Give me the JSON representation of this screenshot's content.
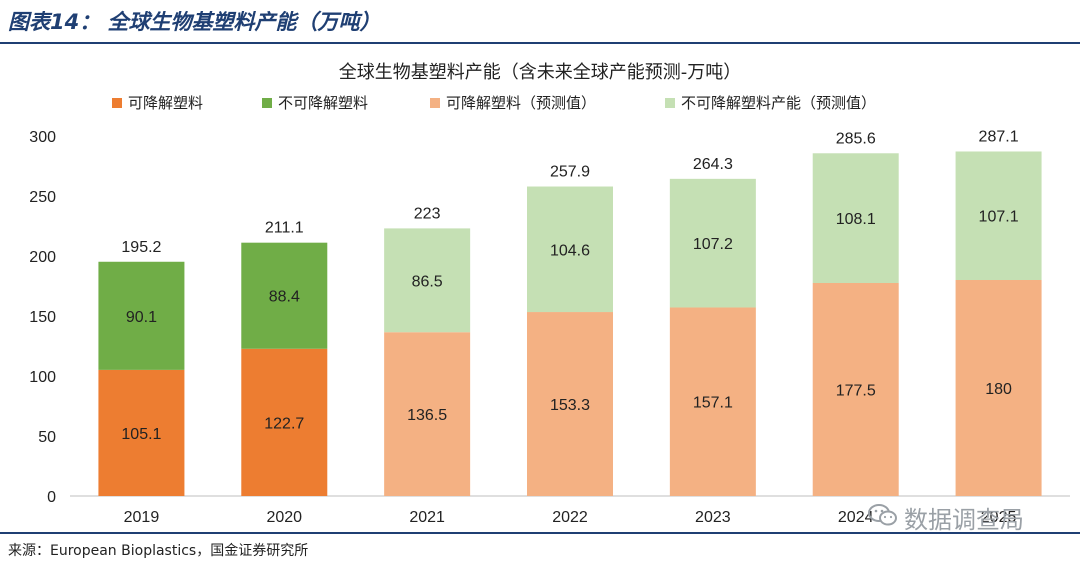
{
  "figure": {
    "title": "图表14： 全球生物基塑料产能（万吨）",
    "source": "来源：European Bioplastics，国金证券研究所"
  },
  "watermark": {
    "text": "数据调查局"
  },
  "colors": {
    "degradable": "#ed7d31",
    "non_degradable": "#70ad47",
    "degradable_forecast": "#f4b183",
    "non_degradable_forecast": "#c5e0b4",
    "rule": "#1f3f73"
  },
  "chart_data": {
    "type": "bar",
    "stacked": true,
    "title": "全球生物基塑料产能（含未来全球产能预测-万吨）",
    "categories": [
      "2019",
      "2020",
      "2021",
      "2022",
      "2023",
      "2024",
      "2025"
    ],
    "series": [
      {
        "name": "可降解塑料",
        "values": [
          105.1,
          122.7,
          null,
          null,
          null,
          null,
          null
        ]
      },
      {
        "name": "不可降解塑料",
        "values": [
          90.1,
          88.4,
          null,
          null,
          null,
          null,
          null
        ]
      },
      {
        "name": "可降解塑料（预测值）",
        "values": [
          null,
          null,
          136.5,
          153.3,
          157.1,
          177.5,
          180
        ]
      },
      {
        "name": "不可降解塑料产能（预测值）",
        "values": [
          null,
          null,
          86.5,
          104.6,
          107.2,
          108.1,
          107.1
        ]
      }
    ],
    "totals": [
      "195.2",
      "211.1",
      "223",
      "257.9",
      "264.3",
      "285.6",
      "287.1"
    ],
    "ylim": [
      0,
      300
    ],
    "yticks": [
      0,
      50,
      100,
      150,
      200,
      250,
      300
    ],
    "legend_position": "top",
    "grid": false
  }
}
